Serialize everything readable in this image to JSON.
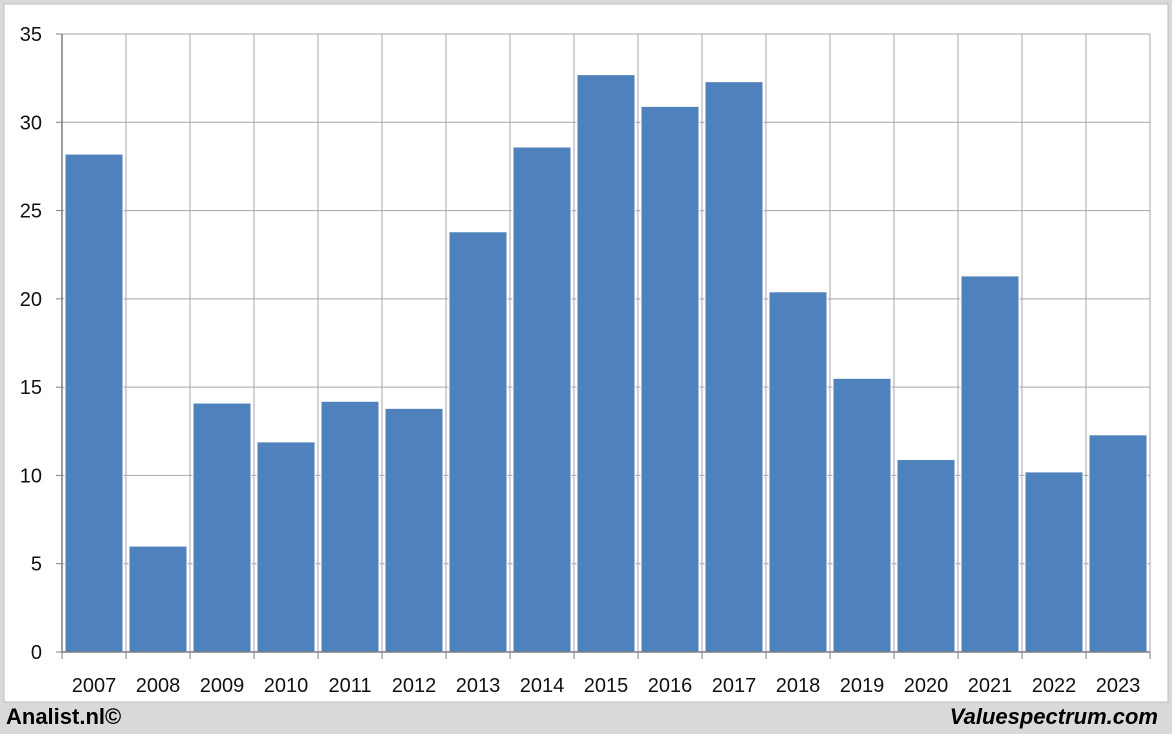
{
  "footer": {
    "left_text": "Analist.nl©",
    "right_text": "Valuespectrum.com"
  },
  "colors": {
    "bar": "#4f81bd",
    "grid": "#a6a6a6",
    "frame_bg": "#d9d9d9",
    "plot_bg": "#ffffff"
  },
  "chart_data": {
    "type": "bar",
    "title": "",
    "xlabel": "",
    "ylabel": "",
    "categories": [
      "2007",
      "2008",
      "2009",
      "2010",
      "2011",
      "2012",
      "2013",
      "2014",
      "2015",
      "2016",
      "2017",
      "2018",
      "2019",
      "2020",
      "2021",
      "2022",
      "2023"
    ],
    "values": [
      28.2,
      6.0,
      14.1,
      11.9,
      14.2,
      13.8,
      23.8,
      28.6,
      32.7,
      30.9,
      32.3,
      20.4,
      15.5,
      10.9,
      21.3,
      10.2,
      12.3
    ],
    "ylim": [
      0,
      35
    ],
    "yticks": [
      "0",
      "5",
      "10",
      "15",
      "20",
      "25",
      "30",
      "35"
    ],
    "grid": true,
    "legend": "none"
  }
}
